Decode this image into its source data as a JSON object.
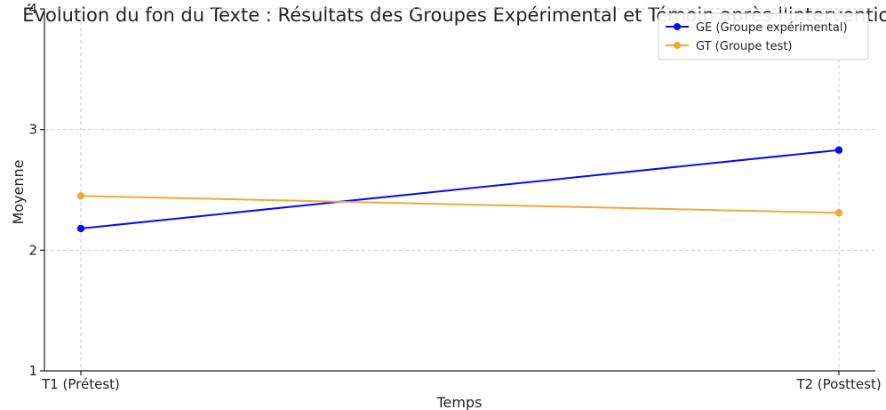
{
  "chart_data": {
    "type": "line",
    "title": "Évolution du fon du Texte : Résultats des Groupes Expérimental et Témoin après l'intervention",
    "xlabel": "Temps",
    "ylabel": "Moyenne",
    "categories": [
      "T1 (Prétest)",
      "T2 (Posttest)"
    ],
    "ylim": [
      1,
      4
    ],
    "yticks": [
      1,
      2,
      3,
      4
    ],
    "grid": true,
    "legend_position": "top-right",
    "series": [
      {
        "name": "GE (Groupe expérimental)",
        "values": [
          2.18,
          2.83
        ],
        "color": "#0a0af0"
      },
      {
        "name": "GT (Groupe test)",
        "values": [
          2.45,
          2.31
        ],
        "color": "#f0a838"
      }
    ]
  }
}
